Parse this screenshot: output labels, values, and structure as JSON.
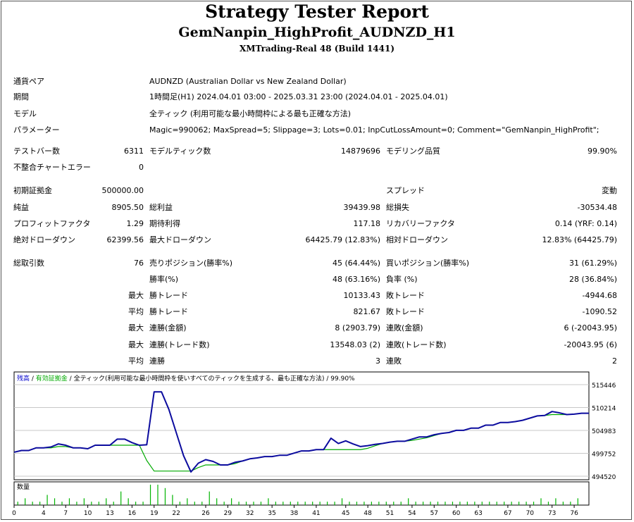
{
  "header": {
    "title": "Strategy Tester Report",
    "ea_name": "GemNanpin_HighProfit_AUDNZD_H1",
    "server": "XMTrading-Real 48 (Build 1441)"
  },
  "info": {
    "symbol_label": "通貨ペア",
    "symbol_value": "AUDNZD (Australian Dollar vs New Zealand Dollar)",
    "period_label": "期間",
    "period_value": "1時間足(H1) 2024.04.01 03:00 - 2025.03.31 23:00 (2024.04.01 - 2025.04.01)",
    "model_label": "モデル",
    "model_value": "全ティック (利用可能な最小時間枠による最も正確な方法)",
    "params_label": "パラメーター",
    "params_value": "Magic=990062; MaxSpread=5; Slippage=3; Lots=0.01; InpCutLossAmount=0; Comment=\"GemNanpin_HighProfit\";"
  },
  "stats": {
    "bars_label": "テストバー数",
    "bars_value": "6311",
    "ticks_label": "モデルティック数",
    "ticks_value": "14879696",
    "quality_label": "モデリング品質",
    "quality_value": "99.90%",
    "mismatch_label": "不整合チャートエラー",
    "mismatch_value": "0",
    "deposit_label": "初期証拠金",
    "deposit_value": "500000.00",
    "spread_label": "スプレッド",
    "spread_value": "変動",
    "net_label": "純益",
    "net_value": "8905.50",
    "gross_profit_label": "総利益",
    "gross_profit_value": "39439.98",
    "gross_loss_label": "総損失",
    "gross_loss_value": "-30534.48",
    "pf_label": "プロフィットファクタ",
    "pf_value": "1.29",
    "payoff_label": "期待利得",
    "payoff_value": "117.18",
    "rf_label": "リカバリーファクタ",
    "rf_value": "0.14 (YRF: 0.14)",
    "abs_dd_label": "絶対ドローダウン",
    "abs_dd_value": "62399.56",
    "max_dd_label": "最大ドローダウン",
    "max_dd_value": "64425.79 (12.83%)",
    "rel_dd_label": "相対ドローダウン",
    "rel_dd_value": "12.83% (64425.79)",
    "trades_label": "総取引数",
    "trades_value": "76",
    "short_label": "売りポジション(勝率%)",
    "short_value": "45 (64.44%)",
    "long_label": "買いポジション(勝率%)",
    "long_value": "31 (61.29%)",
    "win_pct_label": "勝率(%)",
    "win_pct_value": "48 (63.16%)",
    "loss_pct_label": "負率 (%)",
    "loss_pct_value": "28 (36.84%)",
    "max1": "最大",
    "largest_win_label": "勝トレード",
    "largest_win_value": "10133.43",
    "largest_loss_label": "敗トレード",
    "largest_loss_value": "-4944.68",
    "avg1": "平均",
    "avg_win_label": "勝トレード",
    "avg_win_value": "821.67",
    "avg_loss_label": "敗トレード",
    "avg_loss_value": "-1090.52",
    "max2": "最大",
    "cons_wins_amt_label": "連勝(金額)",
    "cons_wins_amt_value": "8 (2903.79)",
    "cons_loss_amt_label": "連敗(金額)",
    "cons_loss_amt_value": "6 (-20043.95)",
    "max3": "最大",
    "cons_wins_cnt_label": "連勝(トレード数)",
    "cons_wins_cnt_value": "13548.03 (2)",
    "cons_loss_cnt_label": "連敗(トレード数)",
    "cons_loss_cnt_value": "-20043.95 (6)",
    "avg2": "平均",
    "avg_cons_wins_label": "連勝",
    "avg_cons_wins_value": "3",
    "avg_cons_loss_label": "連敗",
    "avg_cons_loss_value": "2"
  },
  "chart_legend": {
    "balance": "残高",
    "sep1": " / ",
    "equity": "有効証拠金",
    "sep2": " / ",
    "model": "全ティック(利用可能な最小時間枠を使いすべてのティックを生成する、最も正確な方法)",
    "sep3": " / ",
    "quality": "99.90%",
    "volume_label": "数量"
  },
  "colors": {
    "balance": "#0b0b9e",
    "equity": "#00aa00",
    "volume": "#00b400",
    "legend_balance": "#0000cc",
    "legend_equity": "#00aa00"
  },
  "chart_data": {
    "type": "line",
    "y_ticks": [
      "515446",
      "510214",
      "504983",
      "499752",
      "494520"
    ],
    "ylim": [
      494520,
      515446
    ],
    "x_ticks": [
      "0",
      "4",
      "7",
      "10",
      "13",
      "16",
      "19",
      "22",
      "26",
      "29",
      "32",
      "35",
      "38",
      "41",
      "45",
      "48",
      "51",
      "54",
      "57",
      "60",
      "63",
      "67",
      "70",
      "73",
      "76"
    ],
    "x_range": [
      0,
      78
    ],
    "series": [
      {
        "name": "残高",
        "x": [
          0,
          1,
          2,
          3,
          4,
          5,
          6,
          7,
          8,
          9,
          10,
          11,
          12,
          13,
          14,
          15,
          16,
          17,
          18,
          19,
          20,
          21,
          22,
          23,
          24,
          25,
          26,
          27,
          28,
          29,
          30,
          31,
          32,
          33,
          34,
          35,
          36,
          37,
          38,
          39,
          40,
          41,
          42,
          43,
          44,
          45,
          46,
          47,
          48,
          49,
          50,
          51,
          52,
          53,
          54,
          55,
          56,
          57,
          58,
          59,
          60,
          61,
          62,
          63,
          64,
          65,
          66,
          67,
          68,
          69,
          70,
          71,
          72,
          73,
          74,
          75,
          76,
          77,
          78
        ],
        "values": [
          500000,
          500400,
          500400,
          501000,
          501000,
          501200,
          501900,
          501600,
          501000,
          501000,
          500800,
          501600,
          501600,
          501600,
          503000,
          503000,
          502200,
          501600,
          501700,
          513800,
          513800,
          509800,
          504500,
          499200,
          495500,
          497500,
          498300,
          497900,
          497100,
          497100,
          497700,
          498000,
          498500,
          498700,
          499000,
          499000,
          499300,
          499300,
          499800,
          500300,
          500300,
          500600,
          500600,
          503200,
          502000,
          502600,
          501900,
          501300,
          501500,
          501800,
          502000,
          502300,
          502500,
          502500,
          503000,
          503500,
          503500,
          504000,
          504300,
          504500,
          505000,
          505000,
          505500,
          505500,
          506200,
          506200,
          506800,
          506800,
          507000,
          507300,
          507800,
          508300,
          508400,
          509300,
          509000,
          508600,
          508700,
          508900,
          508900
        ]
      },
      {
        "name": "有効証拠金",
        "x": [
          0,
          1,
          2,
          3,
          4,
          5,
          6,
          7,
          8,
          9,
          10,
          11,
          12,
          13,
          14,
          15,
          16,
          17,
          18,
          19,
          20,
          21,
          22,
          23,
          24,
          25,
          26,
          27,
          28,
          29,
          30,
          31,
          32,
          33,
          34,
          35,
          36,
          37,
          38,
          39,
          40,
          41,
          42,
          43,
          44,
          45,
          46,
          47,
          48,
          49,
          50,
          51,
          52,
          53,
          54,
          55,
          56,
          57,
          58,
          59,
          60,
          61,
          62,
          63,
          64,
          65,
          66,
          67,
          68,
          69,
          70,
          71,
          72,
          73,
          74,
          75,
          76,
          77,
          78
        ],
        "values": [
          500000,
          500400,
          500400,
          501000,
          501000,
          501000,
          501300,
          501300,
          501000,
          501000,
          500800,
          501600,
          501600,
          501600,
          501600,
          501600,
          501600,
          501600,
          498100,
          495700,
          495700,
          495700,
          495700,
          495700,
          495700,
          496500,
          497100,
          497100,
          497100,
          497100,
          497400,
          498000,
          498500,
          498700,
          499000,
          499000,
          499300,
          499300,
          499800,
          500300,
          500300,
          500600,
          500600,
          500600,
          500600,
          500600,
          500600,
          500600,
          500900,
          501500,
          502000,
          502300,
          502500,
          502500,
          502700,
          503000,
          503300,
          503800,
          504300,
          504500,
          505000,
          505000,
          505500,
          505500,
          506200,
          506200,
          506800,
          506800,
          507000,
          507300,
          507800,
          508300,
          508400,
          508600,
          508600,
          508600,
          508700,
          508900,
          508900
        ]
      }
    ],
    "volume": {
      "name": "数量",
      "x": [
        0,
        1,
        2,
        3,
        4,
        5,
        6,
        7,
        8,
        9,
        10,
        11,
        12,
        13,
        14,
        15,
        16,
        17,
        18,
        19,
        20,
        21,
        22,
        23,
        24,
        25,
        26,
        27,
        28,
        29,
        30,
        31,
        32,
        33,
        34,
        35,
        36,
        37,
        38,
        39,
        40,
        41,
        42,
        43,
        44,
        45,
        46,
        47,
        48,
        49,
        50,
        51,
        52,
        53,
        54,
        55,
        56,
        57,
        58,
        59,
        60,
        61,
        62,
        63,
        64,
        65,
        66,
        67,
        68,
        69,
        70,
        71,
        72,
        73,
        74,
        75,
        76
      ],
      "values": [
        1,
        2,
        1,
        1,
        3,
        2,
        1,
        2,
        1,
        2,
        1,
        1,
        2,
        1,
        4,
        2,
        1,
        1,
        6,
        6,
        5,
        3,
        1,
        2,
        1,
        1,
        4,
        2,
        1,
        2,
        1,
        1,
        1,
        1,
        2,
        1,
        1,
        1,
        1,
        1,
        1,
        1,
        1,
        1,
        2,
        1,
        1,
        1,
        1,
        1,
        1,
        1,
        1,
        2,
        1,
        1,
        1,
        1,
        1,
        1,
        1,
        1,
        1,
        1,
        1,
        1,
        1,
        1,
        1,
        1,
        1,
        2,
        1,
        2,
        1,
        1,
        2
      ]
    }
  }
}
